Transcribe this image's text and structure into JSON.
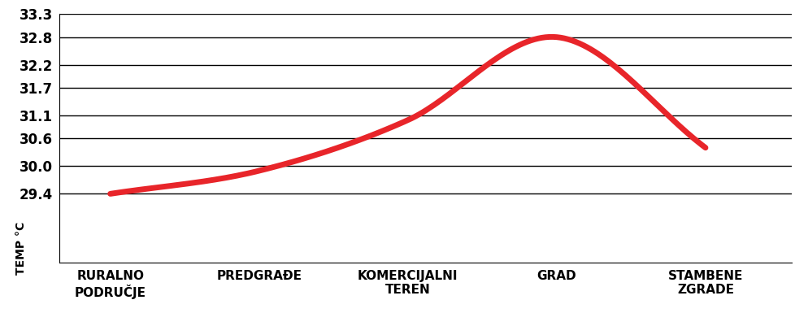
{
  "chart_data": {
    "type": "line",
    "y_label": "TEMP °C",
    "categories": [
      "RURALNO\nPODRUČJE",
      "PREDGRAĐE",
      "KOMERCIJALNI\nTEREN",
      "GRAD",
      "STAMBENE\nZGRADE"
    ],
    "values": [
      29.4,
      29.9,
      31.0,
      32.8,
      30.4
    ],
    "color": "#e8252a",
    "ylim": [
      27.9,
      33.3
    ],
    "yticks": [
      29.4,
      30.0,
      30.6,
      31.1,
      31.7,
      32.2,
      32.8,
      33.3
    ],
    "grid": true
  }
}
